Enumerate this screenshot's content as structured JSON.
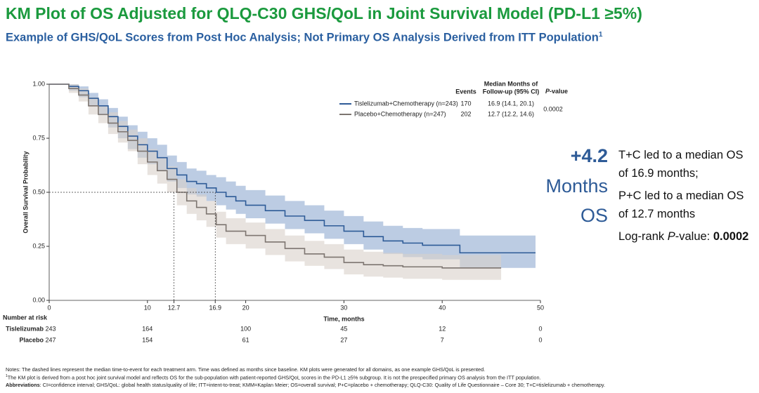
{
  "header": {
    "title": "KM Plot of OS Adjusted for QLQ-C30 GHS/QoL in Joint Survival Model (PD-L1 ≥5%)",
    "subtitle": "Example of GHS/QoL Scores from Post Hoc Analysis;  Not Primary OS Analysis Derived from ITT Population",
    "subtitle_sup": "1"
  },
  "chart_data": {
    "type": "km",
    "x_label": "Time, months",
    "y_label": "Overall Survival Probability",
    "xlim": [
      0,
      50
    ],
    "ylim": [
      0,
      1
    ],
    "xticks": [
      0,
      10,
      12.7,
      16.9,
      20,
      30,
      40,
      50
    ],
    "yticks": [
      {
        "value": 0,
        "label": "0.00"
      },
      {
        "value": 0.25,
        "label": "0.25"
      },
      {
        "value": 0.5,
        "label": "0.50"
      },
      {
        "value": 0.75,
        "label": "0.75"
      },
      {
        "value": 1,
        "label": "1.00"
      }
    ],
    "median_lines": {
      "y": 0.5,
      "x": [
        12.7,
        16.9
      ]
    },
    "series": [
      {
        "name": "Tislelizumab+Chemotherapy (n=243)",
        "color": "#2e5b97",
        "band_color": "#8faad0",
        "x": [
          0,
          2,
          3,
          4,
          5,
          6,
          7,
          8,
          9,
          10,
          11,
          12,
          13,
          14,
          15,
          16,
          17,
          18,
          19,
          20,
          22,
          24,
          26,
          28,
          30,
          32,
          34,
          36,
          38,
          41.8,
          49.5
        ],
        "values": [
          1,
          0.99,
          0.97,
          0.935,
          0.9,
          0.85,
          0.805,
          0.76,
          0.72,
          0.69,
          0.66,
          0.61,
          0.58,
          0.55,
          0.54,
          0.52,
          0.5,
          0.48,
          0.46,
          0.44,
          0.415,
          0.39,
          0.37,
          0.345,
          0.32,
          0.295,
          0.275,
          0.265,
          0.255,
          0.22,
          0.22
        ],
        "ci_lower": [
          1,
          0.97,
          0.94,
          0.9,
          0.86,
          0.8,
          0.75,
          0.7,
          0.66,
          0.63,
          0.6,
          0.55,
          0.52,
          0.49,
          0.48,
          0.46,
          0.44,
          0.42,
          0.4,
          0.38,
          0.355,
          0.33,
          0.31,
          0.285,
          0.26,
          0.235,
          0.215,
          0.2,
          0.19,
          0.15,
          0.15
        ],
        "ci_upper": [
          1,
          1,
          0.99,
          0.96,
          0.93,
          0.89,
          0.85,
          0.81,
          0.78,
          0.75,
          0.72,
          0.67,
          0.64,
          0.61,
          0.6,
          0.58,
          0.57,
          0.55,
          0.53,
          0.51,
          0.485,
          0.46,
          0.44,
          0.415,
          0.39,
          0.365,
          0.345,
          0.335,
          0.33,
          0.3,
          0.3
        ]
      },
      {
        "name": "Placebo+Chemotherapy (n=247)",
        "color": "#7d7570",
        "band_color": "#d8d0c9",
        "x": [
          0,
          2,
          3,
          4,
          5,
          6,
          7,
          8,
          9,
          10,
          11,
          12,
          13,
          14,
          15,
          16,
          17,
          18,
          20,
          22,
          24,
          26,
          28,
          30,
          32,
          34,
          36,
          40,
          46
        ],
        "values": [
          1,
          0.98,
          0.95,
          0.9,
          0.86,
          0.82,
          0.78,
          0.74,
          0.69,
          0.64,
          0.6,
          0.56,
          0.5,
          0.46,
          0.43,
          0.4,
          0.35,
          0.32,
          0.3,
          0.27,
          0.24,
          0.215,
          0.2,
          0.175,
          0.165,
          0.16,
          0.155,
          0.15,
          0.15
        ],
        "ci_lower": [
          1,
          0.96,
          0.92,
          0.86,
          0.82,
          0.77,
          0.73,
          0.69,
          0.63,
          0.58,
          0.54,
          0.5,
          0.44,
          0.4,
          0.37,
          0.34,
          0.29,
          0.26,
          0.24,
          0.21,
          0.18,
          0.16,
          0.145,
          0.12,
          0.11,
          0.105,
          0.1,
          0.095,
          0.095
        ],
        "ci_upper": [
          1,
          1,
          0.98,
          0.94,
          0.9,
          0.87,
          0.83,
          0.79,
          0.75,
          0.7,
          0.66,
          0.62,
          0.56,
          0.52,
          0.49,
          0.46,
          0.41,
          0.38,
          0.36,
          0.33,
          0.3,
          0.275,
          0.26,
          0.235,
          0.225,
          0.22,
          0.215,
          0.21,
          0.21
        ]
      }
    ]
  },
  "legend_table": {
    "events_header": "Events",
    "median_header_1": "Median Months of",
    "median_header_2": "Follow-up (95% CI)",
    "p_header_italic": "P",
    "p_header_rest": "-value",
    "rows": [
      {
        "events": "170",
        "median": "16.9 (14.1, 20.1)"
      },
      {
        "events": "202",
        "median": "12.7 (12.2, 14.6)"
      }
    ],
    "p_value": "0.0002"
  },
  "at_risk": {
    "title": "Number at risk",
    "rows": [
      {
        "label": "Tislelizumab",
        "counts": [
          243,
          164,
          100,
          45,
          12,
          0
        ]
      },
      {
        "label": "Placebo",
        "counts": [
          247,
          154,
          61,
          27,
          7,
          0
        ]
      }
    ]
  },
  "callout": {
    "big": [
      "+4.2",
      "Months",
      "OS"
    ],
    "lines": [
      "T+C led to a median OS",
      "of 16.9 months;",
      "P+C led to a median OS",
      "of 12.7 months"
    ],
    "logrank_prefix": "Log-rank ",
    "logrank_italic": "P",
    "logrank_mid": "-value: ",
    "logrank_value": "0.0002"
  },
  "notes": {
    "line1": "Notes: The dashed lines represent the median time-to-event for each treatment arm. Time was defined as months since baseline. KM plots were generated for all domains, as one example GHS/QoL is presented.",
    "line2_sup": "1",
    "line2": "The KM plot is derived from a post hoc joint survival model and reflects OS for the sub-population with patient-reported GHS/QoL scores in the PD-L1 ≥5% subgroup. It is not the prespecified primary OS analysis from the ITT population.",
    "abbr_label": "Abbreviations",
    "abbr": ": CI=confidence interval; GHS/QoL: global health status/quality of life; ITT=intent-to-treat; KMM=Kaplan Meier; OS=overall survival; P+C=placebo + chemotherapy; QLQ-C30: Quality of Life Questionnaire – Core 30; T+C=tislelizumab + chemotherapy."
  }
}
